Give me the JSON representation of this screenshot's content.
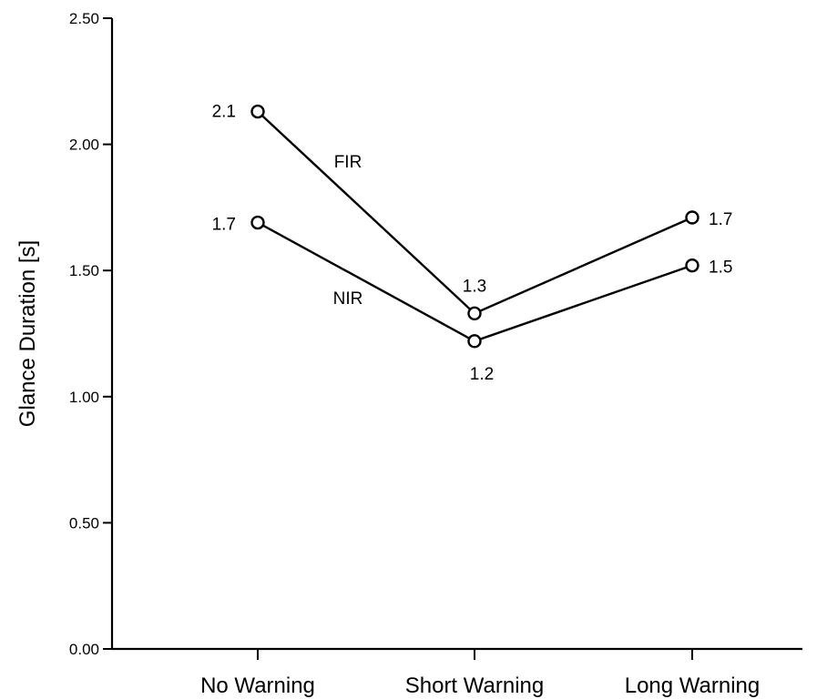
{
  "chart_data": {
    "type": "line",
    "ylabel": "Glance Duration [s]",
    "ylim": [
      0,
      2.5
    ],
    "yticks": [
      "0.00",
      "0.50",
      "1.00",
      "1.50",
      "2.00",
      "2.50"
    ],
    "categories": [
      "No Warning",
      "Short Warning",
      "Long Warning"
    ],
    "series": [
      {
        "name": "FIR",
        "values": [
          2.13,
          1.33,
          1.71
        ],
        "labels": [
          "2.1",
          "1.3",
          "1.7"
        ]
      },
      {
        "name": "NIR",
        "values": [
          1.69,
          1.22,
          1.52
        ],
        "labels": [
          "1.7",
          "1.2",
          "1.5"
        ]
      }
    ],
    "grid": false,
    "legend": "none"
  }
}
